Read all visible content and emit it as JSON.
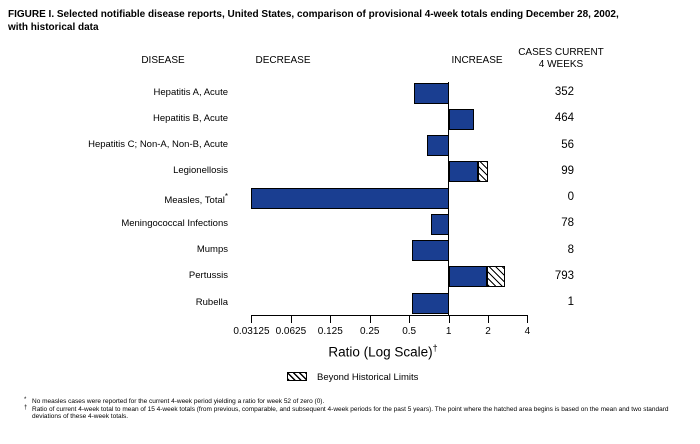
{
  "title_lines": [
    "FIGURE I. Selected notifiable disease reports, United States, comparison of provisional 4-week totals ending December 28, 2002,",
    "with historical data"
  ],
  "column_headers": {
    "disease": "DISEASE",
    "decrease": "DECREASE",
    "increase": "INCREASE",
    "cases_line1": "CASES CURRENT",
    "cases_line2": "4 WEEKS"
  },
  "chart_data": {
    "type": "bar",
    "orientation": "horizontal",
    "x_scale": "log2",
    "baseline_ratio": 1,
    "xlim": [
      0.03125,
      4
    ],
    "x_ticks": [
      "0.03125",
      "0.0625",
      "0.125",
      "0.25",
      "0.5",
      "1",
      "2",
      "4"
    ],
    "xlabel": "Ratio (Log Scale)",
    "xlabel_footnote_marker": "†",
    "rows": [
      {
        "disease": "Hepatitis A, Acute",
        "marker": "",
        "ratio": 0.54,
        "cases": "352",
        "beyond_limit_from": null
      },
      {
        "disease": "Hepatitis B, Acute",
        "marker": "",
        "ratio": 1.57,
        "cases": "464",
        "beyond_limit_from": null
      },
      {
        "disease": "Hepatitis C; Non-A, Non-B, Acute",
        "marker": "",
        "ratio": 0.69,
        "cases": "56",
        "beyond_limit_from": null
      },
      {
        "disease": "Legionellosis",
        "marker": "",
        "ratio": 2.0,
        "cases": "99",
        "beyond_limit_from": 1.69
      },
      {
        "disease": "Measles, Total",
        "marker": "*",
        "ratio": 0.03125,
        "cases": "0",
        "beyond_limit_from": null
      },
      {
        "disease": "Meningococcal Infections",
        "marker": "",
        "ratio": 0.74,
        "cases": "78",
        "beyond_limit_from": null
      },
      {
        "disease": "Mumps",
        "marker": "",
        "ratio": 0.53,
        "cases": "8",
        "beyond_limit_from": null
      },
      {
        "disease": "Pertussis",
        "marker": "",
        "ratio": 2.7,
        "cases": "793",
        "beyond_limit_from": 1.95
      },
      {
        "disease": "Rubella",
        "marker": "",
        "ratio": 0.53,
        "cases": "1",
        "beyond_limit_from": null
      }
    ],
    "legend": {
      "label": "Beyond Historical Limits"
    }
  },
  "footnotes": [
    {
      "marker": "*",
      "text": "No measles cases were reported for the current 4-week period yielding a ratio for week 52 of zero (0)."
    },
    {
      "marker": "†",
      "text": "Ratio of current 4-week total to mean of 15 4-week totals (from previous, comparable, and subsequent 4-week periods for the past 5 years). The point where the hatched area begins is based on the mean and two standard deviations of these 4-week totals."
    }
  ],
  "colors": {
    "bar": "#1a3e91",
    "axis": "#000000",
    "background": "#ffffff"
  }
}
